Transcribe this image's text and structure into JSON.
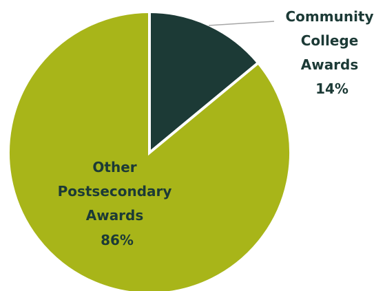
{
  "chart_data": {
    "type": "pie",
    "slices": [
      {
        "label_lines": [
          "Community",
          "College",
          "Awards"
        ],
        "value": 14,
        "value_text": "14%",
        "color": "#1c3a36"
      },
      {
        "label_lines": [
          "Other",
          "Postsecondary",
          "Awards"
        ],
        "value": 86,
        "value_text": "86%",
        "color": "#a8b519"
      }
    ],
    "label_color": "#1c3a36",
    "slice_border_color": "#ffffff",
    "leader_line_color": "#a6a6a6",
    "start": "12 o'clock",
    "direction": "clockwise"
  }
}
